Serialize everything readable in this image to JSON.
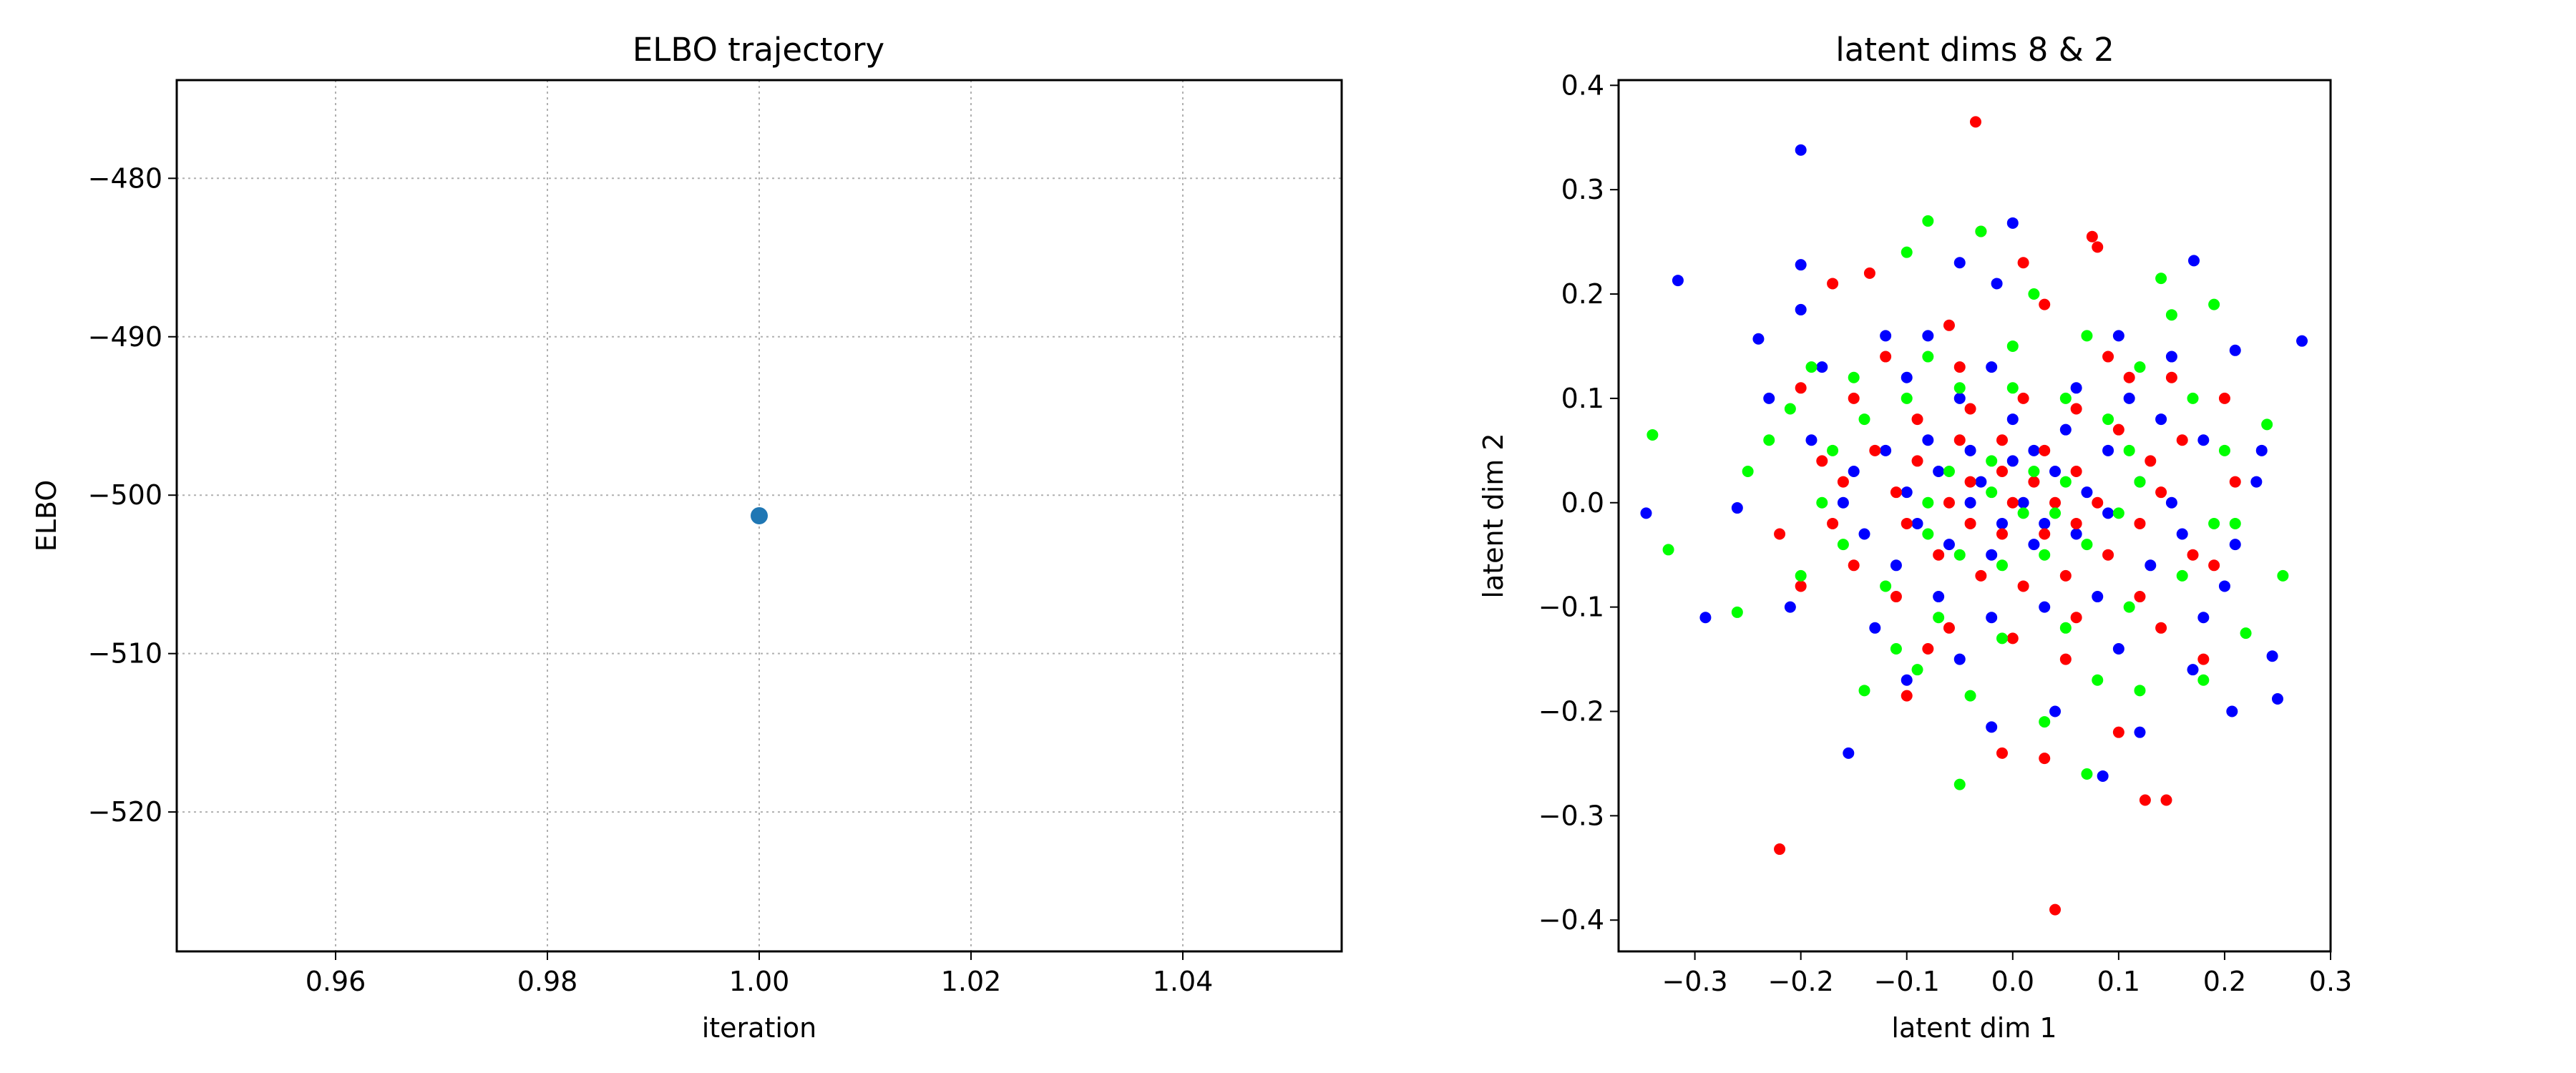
{
  "chart_data": [
    {
      "type": "line",
      "title": "ELBO trajectory",
      "xlabel": "iteration",
      "ylabel": "ELBO",
      "xlim": [
        0.945,
        1.055
      ],
      "ylim": [
        -528.8,
        -473.8
      ],
      "xticks": [
        0.96,
        0.98,
        1.0,
        1.02,
        1.04
      ],
      "xtick_labels": [
        "0.96",
        "0.98",
        "1.00",
        "1.02",
        "1.04"
      ],
      "yticks": [
        -520,
        -510,
        -500,
        -490,
        -480
      ],
      "ytick_labels": [
        "−520",
        "−510",
        "−500",
        "−490",
        "−480"
      ],
      "grid": true,
      "series": [
        {
          "color": "#1f77b4",
          "x": [
            1.0
          ],
          "y": [
            -501.3
          ]
        }
      ]
    },
    {
      "type": "scatter",
      "title": "latent dims 8 & 2",
      "xlabel": "latent dim 1",
      "ylabel": "latent dim 2",
      "xlim": [
        -0.372,
        0.3
      ],
      "ylim": [
        -0.43,
        0.405
      ],
      "xticks": [
        -0.3,
        -0.2,
        -0.1,
        0.0,
        0.1,
        0.2,
        0.3
      ],
      "xtick_labels": [
        "−0.3",
        "−0.2",
        "−0.1",
        "0.0",
        "0.1",
        "0.2",
        "0.3"
      ],
      "yticks": [
        -0.4,
        -0.3,
        -0.2,
        -0.1,
        0.0,
        0.1,
        0.2,
        0.3,
        0.4
      ],
      "ytick_labels": [
        "−0.4",
        "−0.3",
        "−0.2",
        "−0.1",
        "0.0",
        "0.1",
        "0.2",
        "0.3",
        "0.4"
      ],
      "grid": false,
      "series": [
        {
          "color": "#0000ff",
          "points": [
            [
              -0.2,
              0.338
            ],
            [
              0.171,
              0.232
            ],
            [
              0.273,
              0.155
            ],
            [
              -0.316,
              0.213
            ],
            [
              -0.346,
              -0.01
            ],
            [
              -0.29,
              -0.11
            ],
            [
              -0.155,
              -0.24
            ],
            [
              0.085,
              -0.262
            ],
            [
              0.25,
              -0.188
            ],
            [
              0.245,
              -0.147
            ],
            [
              0.207,
              -0.2
            ],
            [
              -0.2,
              0.228
            ],
            [
              -0.24,
              0.157
            ],
            [
              0.0,
              0.268
            ],
            [
              -0.015,
              0.21
            ],
            [
              0.21,
              0.146
            ],
            [
              -0.2,
              0.185
            ],
            [
              -0.05,
              0.23
            ],
            [
              -0.12,
              0.16
            ],
            [
              0.1,
              0.16
            ],
            [
              0.15,
              0.14
            ],
            [
              0.235,
              0.05
            ],
            [
              0.23,
              0.02
            ],
            [
              0.21,
              -0.04
            ],
            [
              0.18,
              -0.11
            ],
            [
              0.12,
              -0.22
            ],
            [
              -0.02,
              -0.215
            ],
            [
              0.04,
              -0.2
            ],
            [
              -0.1,
              -0.17
            ],
            [
              -0.21,
              -0.1
            ],
            [
              -0.26,
              -0.005
            ],
            [
              -0.23,
              0.1
            ],
            [
              -0.18,
              0.13
            ],
            [
              -0.1,
              0.12
            ],
            [
              -0.05,
              0.1
            ],
            [
              0.0,
              0.08
            ],
            [
              0.05,
              0.07
            ],
            [
              0.09,
              0.05
            ],
            [
              0.12,
              0.02
            ],
            [
              0.15,
              0.0
            ],
            [
              0.16,
              -0.03
            ],
            [
              0.13,
              -0.06
            ],
            [
              0.08,
              -0.09
            ],
            [
              0.03,
              -0.1
            ],
            [
              -0.02,
              -0.11
            ],
            [
              -0.07,
              -0.09
            ],
            [
              -0.11,
              -0.06
            ],
            [
              -0.14,
              -0.03
            ],
            [
              -0.16,
              0.0
            ],
            [
              -0.15,
              0.03
            ],
            [
              -0.12,
              0.05
            ],
            [
              -0.08,
              0.06
            ],
            [
              -0.04,
              0.05
            ],
            [
              0.0,
              0.04
            ],
            [
              0.04,
              0.03
            ],
            [
              0.07,
              0.01
            ],
            [
              0.09,
              -0.01
            ],
            [
              0.06,
              -0.03
            ],
            [
              0.02,
              -0.04
            ],
            [
              -0.02,
              -0.05
            ],
            [
              -0.06,
              -0.04
            ],
            [
              -0.09,
              -0.02
            ],
            [
              -0.1,
              0.01
            ],
            [
              -0.07,
              0.03
            ],
            [
              -0.03,
              0.02
            ],
            [
              0.01,
              0.0
            ],
            [
              0.03,
              -0.02
            ],
            [
              -0.01,
              -0.02
            ],
            [
              -0.04,
              0.0
            ],
            [
              0.02,
              0.05
            ],
            [
              0.11,
              0.1
            ],
            [
              0.14,
              0.08
            ],
            [
              0.18,
              0.06
            ],
            [
              0.2,
              -0.08
            ],
            [
              0.1,
              -0.14
            ],
            [
              -0.05,
              -0.15
            ],
            [
              -0.13,
              -0.12
            ],
            [
              -0.19,
              0.06
            ],
            [
              0.06,
              0.11
            ],
            [
              -0.02,
              0.13
            ],
            [
              -0.08,
              0.16
            ],
            [
              0.17,
              -0.16
            ]
          ]
        },
        {
          "color": "#ff0000",
          "points": [
            [
              -0.035,
              0.365
            ],
            [
              -0.22,
              -0.332
            ],
            [
              0.04,
              -0.39
            ],
            [
              0.125,
              -0.285
            ],
            [
              -0.03,
              0.26
            ],
            [
              0.075,
              0.255
            ],
            [
              0.08,
              0.245
            ],
            [
              0.01,
              0.23
            ],
            [
              -0.135,
              0.22
            ],
            [
              -0.17,
              0.21
            ],
            [
              0.145,
              -0.285
            ],
            [
              0.18,
              -0.15
            ],
            [
              0.14,
              -0.12
            ],
            [
              0.1,
              -0.22
            ],
            [
              0.03,
              -0.245
            ],
            [
              -0.01,
              -0.24
            ],
            [
              -0.1,
              -0.185
            ],
            [
              -0.2,
              -0.08
            ],
            [
              -0.22,
              -0.03
            ],
            [
              -0.2,
              0.11
            ],
            [
              -0.12,
              0.14
            ],
            [
              -0.06,
              0.17
            ],
            [
              0.03,
              0.19
            ],
            [
              0.09,
              0.14
            ],
            [
              0.15,
              0.12
            ],
            [
              0.2,
              0.1
            ],
            [
              0.21,
              0.02
            ],
            [
              0.17,
              -0.05
            ],
            [
              0.12,
              -0.09
            ],
            [
              0.06,
              -0.11
            ],
            [
              0.0,
              -0.13
            ],
            [
              -0.06,
              -0.12
            ],
            [
              -0.11,
              -0.09
            ],
            [
              -0.15,
              -0.06
            ],
            [
              -0.17,
              -0.02
            ],
            [
              -0.16,
              0.02
            ],
            [
              -0.13,
              0.05
            ],
            [
              -0.09,
              0.08
            ],
            [
              -0.04,
              0.09
            ],
            [
              0.01,
              0.1
            ],
            [
              0.06,
              0.09
            ],
            [
              0.1,
              0.07
            ],
            [
              0.13,
              0.04
            ],
            [
              0.14,
              0.01
            ],
            [
              0.12,
              -0.02
            ],
            [
              0.09,
              -0.05
            ],
            [
              0.05,
              -0.07
            ],
            [
              0.01,
              -0.08
            ],
            [
              -0.03,
              -0.07
            ],
            [
              -0.07,
              -0.05
            ],
            [
              -0.1,
              -0.02
            ],
            [
              -0.11,
              0.01
            ],
            [
              -0.09,
              0.04
            ],
            [
              -0.05,
              0.06
            ],
            [
              -0.01,
              0.06
            ],
            [
              0.03,
              0.05
            ],
            [
              0.06,
              0.03
            ],
            [
              0.08,
              0.0
            ],
            [
              0.06,
              -0.02
            ],
            [
              0.03,
              -0.03
            ],
            [
              -0.01,
              -0.03
            ],
            [
              -0.04,
              -0.02
            ],
            [
              -0.06,
              0.0
            ],
            [
              -0.04,
              0.02
            ],
            [
              -0.01,
              0.03
            ],
            [
              0.02,
              0.02
            ],
            [
              0.04,
              0.0
            ],
            [
              0.0,
              0.0
            ],
            [
              0.16,
              0.06
            ],
            [
              -0.05,
              0.13
            ],
            [
              0.05,
              -0.15
            ],
            [
              -0.15,
              0.1
            ],
            [
              0.19,
              -0.06
            ],
            [
              -0.08,
              -0.14
            ],
            [
              0.11,
              0.12
            ],
            [
              -0.18,
              0.04
            ]
          ]
        },
        {
          "color": "#00ff00",
          "points": [
            [
              -0.34,
              0.065
            ],
            [
              -0.325,
              -0.045
            ],
            [
              -0.26,
              -0.105
            ],
            [
              -0.05,
              -0.27
            ],
            [
              0.07,
              -0.26
            ],
            [
              -0.03,
              0.26
            ],
            [
              -0.08,
              0.27
            ],
            [
              -0.1,
              0.24
            ],
            [
              0.14,
              0.215
            ],
            [
              0.19,
              0.19
            ],
            [
              0.24,
              0.075
            ],
            [
              0.255,
              -0.07
            ],
            [
              0.22,
              -0.125
            ],
            [
              0.18,
              -0.17
            ],
            [
              0.12,
              -0.18
            ],
            [
              0.03,
              -0.21
            ],
            [
              -0.04,
              -0.185
            ],
            [
              -0.09,
              -0.16
            ],
            [
              -0.14,
              -0.18
            ],
            [
              -0.2,
              -0.07
            ],
            [
              -0.25,
              0.03
            ],
            [
              -0.21,
              0.09
            ],
            [
              -0.15,
              0.12
            ],
            [
              -0.08,
              0.14
            ],
            [
              0.0,
              0.15
            ],
            [
              0.07,
              0.16
            ],
            [
              0.12,
              0.13
            ],
            [
              0.17,
              0.1
            ],
            [
              0.2,
              0.05
            ],
            [
              0.19,
              -0.02
            ],
            [
              0.16,
              -0.07
            ],
            [
              0.11,
              -0.1
            ],
            [
              0.05,
              -0.12
            ],
            [
              -0.01,
              -0.13
            ],
            [
              -0.07,
              -0.11
            ],
            [
              -0.12,
              -0.08
            ],
            [
              -0.16,
              -0.04
            ],
            [
              -0.18,
              0.0
            ],
            [
              -0.17,
              0.05
            ],
            [
              -0.14,
              0.08
            ],
            [
              -0.1,
              0.1
            ],
            [
              -0.05,
              0.11
            ],
            [
              0.0,
              0.11
            ],
            [
              0.05,
              0.1
            ],
            [
              0.09,
              0.08
            ],
            [
              0.11,
              0.05
            ],
            [
              0.12,
              0.02
            ],
            [
              0.1,
              -0.01
            ],
            [
              0.07,
              -0.04
            ],
            [
              0.03,
              -0.05
            ],
            [
              -0.01,
              -0.06
            ],
            [
              -0.05,
              -0.05
            ],
            [
              -0.08,
              -0.03
            ],
            [
              -0.08,
              0.0
            ],
            [
              -0.06,
              0.03
            ],
            [
              -0.02,
              0.04
            ],
            [
              0.02,
              0.03
            ],
            [
              0.05,
              0.02
            ],
            [
              0.04,
              -0.01
            ],
            [
              0.01,
              -0.01
            ],
            [
              -0.02,
              0.01
            ],
            [
              0.15,
              0.18
            ],
            [
              -0.11,
              -0.14
            ],
            [
              0.21,
              -0.02
            ],
            [
              -0.19,
              0.13
            ],
            [
              0.08,
              -0.17
            ],
            [
              -0.23,
              0.06
            ],
            [
              0.02,
              0.2
            ]
          ]
        }
      ]
    }
  ]
}
